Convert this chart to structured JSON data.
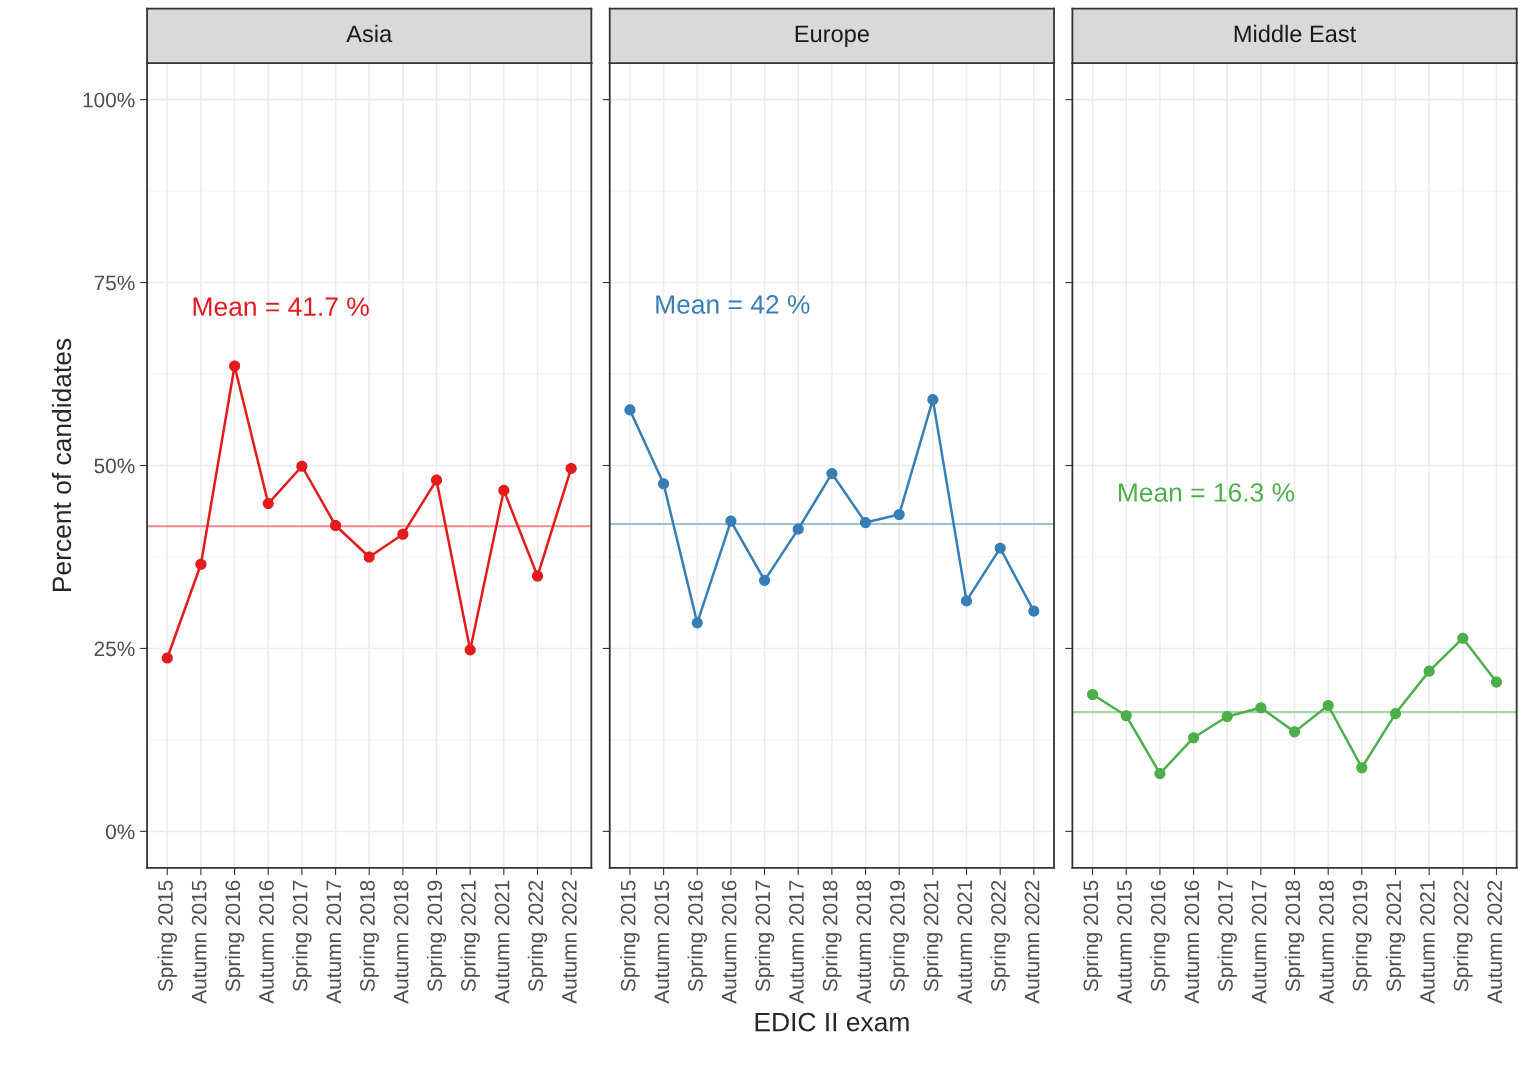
{
  "chart_data": [
    {
      "type": "line",
      "title": "Asia",
      "ylabel": "Percent of candidates",
      "categories": [
        "Spring 2015",
        "Autumn 2015",
        "Spring 2016",
        "Autumn 2016",
        "Spring 2017",
        "Autumn 2017",
        "Spring 2018",
        "Autumn 2018",
        "Spring 2019",
        "Spring 2021",
        "Autumn 2021",
        "Spring 2022",
        "Autumn 2022"
      ],
      "series": [
        {
          "color": "#e41a1c",
          "values": [
            23.7,
            36.5,
            63.6,
            44.8,
            49.9,
            41.8,
            37.5,
            40.6,
            48.0,
            24.8,
            46.6,
            34.9,
            49.6
          ]
        }
      ],
      "ylim": [
        -5,
        105
      ],
      "yticks": [
        {
          "value": 0,
          "label": "0%"
        },
        {
          "value": 25,
          "label": "25%"
        },
        {
          "value": 50,
          "label": "50%"
        },
        {
          "value": 75,
          "label": "75%"
        },
        {
          "value": 100,
          "label": "100%"
        }
      ],
      "ref_lines": [
        {
          "axis": "y",
          "value": 41.7,
          "color": "#f08a8b"
        }
      ],
      "annotations": [
        "Mean = 41.7 %"
      ],
      "grid": true,
      "marker": "circle",
      "line_style": "solid"
    },
    {
      "type": "line",
      "title": "Europe",
      "xlabel": "EDIC II exam",
      "categories": [
        "Spring 2015",
        "Autumn 2015",
        "Spring 2016",
        "Autumn 2016",
        "Spring 2017",
        "Autumn 2017",
        "Spring 2018",
        "Autumn 2018",
        "Spring 2019",
        "Spring 2021",
        "Autumn 2021",
        "Spring 2022",
        "Autumn 2022"
      ],
      "series": [
        {
          "color": "#377eb8",
          "values": [
            57.6,
            47.5,
            28.5,
            42.4,
            34.3,
            41.3,
            48.9,
            42.2,
            43.3,
            59.0,
            31.5,
            38.7,
            30.1
          ]
        }
      ],
      "ylim": [
        -5,
        105
      ],
      "yticks": [
        {
          "value": 0,
          "label": null
        },
        {
          "value": 25,
          "label": null
        },
        {
          "value": 50,
          "label": null
        },
        {
          "value": 75,
          "label": null
        },
        {
          "value": 100,
          "label": null
        }
      ],
      "ref_lines": [
        {
          "axis": "y",
          "value": 42,
          "color": "#9bbfdc"
        }
      ],
      "annotations": [
        "Mean = 42 %"
      ],
      "grid": true,
      "marker": "circle",
      "line_style": "solid",
      "tick_labels": "x"
    },
    {
      "type": "line",
      "title": "Middle East",
      "categories": [
        "Spring 2015",
        "Autumn 2015",
        "Spring 2016",
        "Autumn 2016",
        "Spring 2017",
        "Autumn 2017",
        "Spring 2018",
        "Autumn 2018",
        "Spring 2019",
        "Spring 2021",
        "Autumn 2021",
        "Spring 2022",
        "Autumn 2022"
      ],
      "series": [
        {
          "color": "#4daf4a",
          "values": [
            18.7,
            15.8,
            7.9,
            12.8,
            15.7,
            16.9,
            13.6,
            17.2,
            8.7,
            16.1,
            21.9,
            26.4,
            20.4
          ]
        }
      ],
      "ylim": [
        -5,
        105
      ],
      "yticks": [
        {
          "value": 0,
          "label": null
        },
        {
          "value": 25,
          "label": null
        },
        {
          "value": 50,
          "label": null
        },
        {
          "value": 75,
          "label": null
        },
        {
          "value": 100,
          "label": null
        }
      ],
      "ref_lines": [
        {
          "axis": "y",
          "value": 16.3,
          "color": "#a6d7a4"
        }
      ],
      "annotations": [
        "Mean = 16.3 %"
      ],
      "grid": true,
      "marker": "circle",
      "line_style": "solid",
      "tick_labels": "x"
    }
  ]
}
